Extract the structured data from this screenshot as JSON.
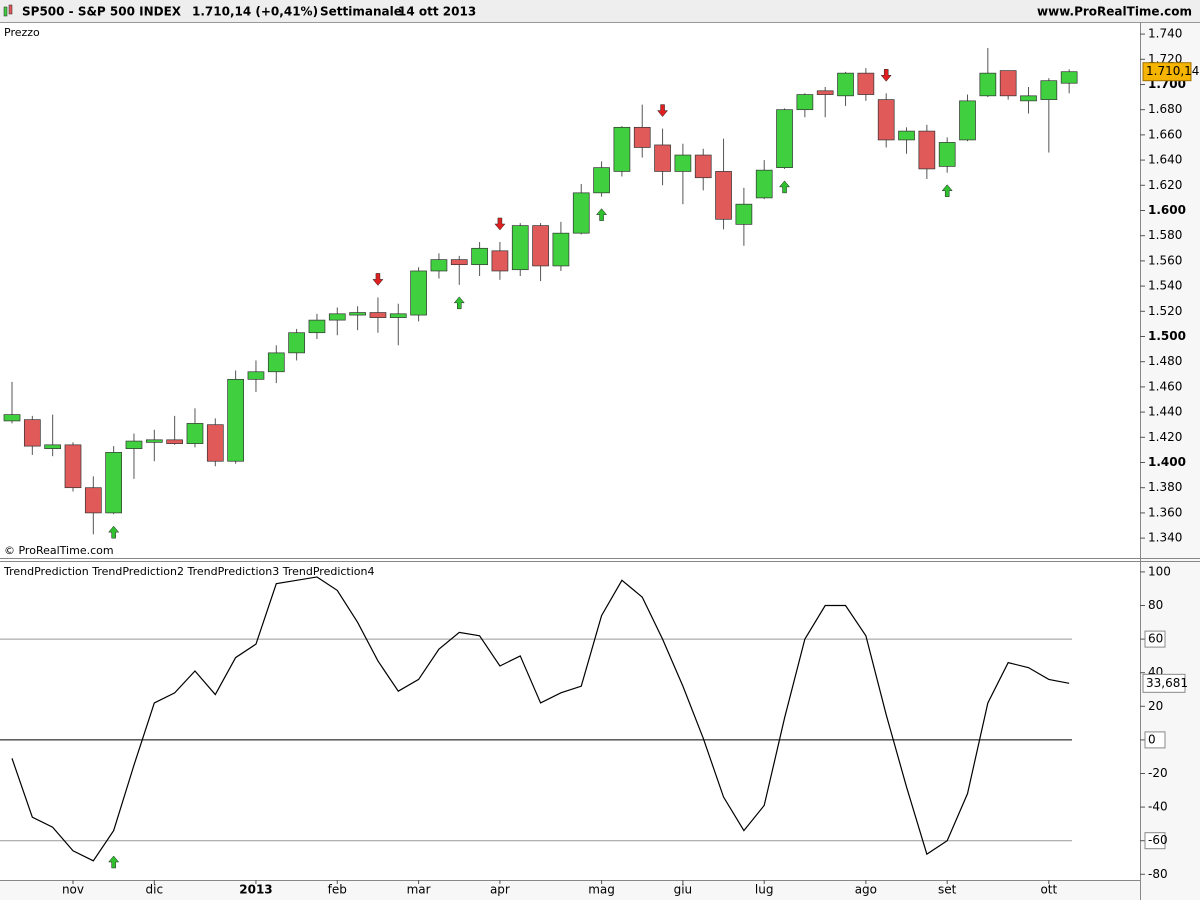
{
  "header": {
    "symbol": "SP500 - S&P 500 INDEX",
    "quote": "1.710,14 (+0,41%)",
    "period": "Settimanale",
    "date": "14 ott 2013",
    "site": "www.ProRealTime.com"
  },
  "chart_data": [
    {
      "type": "candlestick",
      "title": "Prezzo",
      "credit": "© ProRealTime.com",
      "categories": [
        null,
        null,
        null,
        "nov",
        null,
        null,
        null,
        "dic",
        null,
        null,
        null,
        null,
        "2013",
        null,
        null,
        null,
        "feb",
        null,
        null,
        null,
        "mar",
        null,
        null,
        null,
        "apr",
        null,
        null,
        null,
        null,
        "mag",
        null,
        null,
        null,
        "giu",
        null,
        null,
        null,
        "lug",
        null,
        null,
        null,
        null,
        "ago",
        null,
        null,
        null,
        "set",
        null,
        null,
        null,
        null,
        "ott",
        null
      ],
      "open": [
        1433,
        1434,
        1411,
        1414,
        1380,
        1360,
        1411,
        1416,
        1418,
        1415,
        1430,
        1401,
        1466,
        1472,
        1487,
        1503,
        1513,
        1517,
        1519,
        1515,
        1517,
        1552,
        1561,
        1557,
        1568,
        1553,
        1588,
        1556,
        1582,
        1614,
        1631,
        1666,
        1652,
        1631,
        1644,
        1631,
        1589,
        1610,
        1634,
        1680,
        1695,
        1691,
        1709,
        1688,
        1656,
        1663,
        1635,
        1656,
        1691,
        1711,
        1687,
        1688,
        1701
      ],
      "high": [
        1464,
        1437,
        1438,
        1416,
        1389,
        1413,
        1423,
        1426,
        1437,
        1443,
        1435,
        1473,
        1481,
        1493,
        1506,
        1518,
        1523,
        1524,
        1531,
        1526,
        1555,
        1566,
        1564,
        1575,
        1575,
        1590,
        1590,
        1591,
        1621,
        1639,
        1667,
        1684,
        1665,
        1653,
        1649,
        1657,
        1618,
        1640,
        1681,
        1693,
        1698,
        1710,
        1713,
        1693,
        1666,
        1668,
        1658,
        1692,
        1729,
        1711,
        1698,
        1705,
        1712
      ],
      "low": [
        1431,
        1406,
        1405,
        1377,
        1343,
        1359,
        1387,
        1401,
        1414,
        1412,
        1397,
        1399,
        1456,
        1463,
        1481,
        1498,
        1501,
        1505,
        1503,
        1493,
        1512,
        1546,
        1541,
        1548,
        1545,
        1548,
        1544,
        1552,
        1581,
        1611,
        1627,
        1642,
        1620,
        1605,
        1616,
        1585,
        1572,
        1609,
        1633,
        1674,
        1674,
        1683,
        1687,
        1650,
        1645,
        1625,
        1630,
        1655,
        1690,
        1688,
        1677,
        1646,
        1693
      ],
      "close": [
        1438,
        1413,
        1414,
        1380,
        1360,
        1408,
        1417,
        1418,
        1415,
        1431,
        1401,
        1466,
        1472,
        1487,
        1503,
        1513,
        1518,
        1519,
        1515,
        1518,
        1552,
        1561,
        1557,
        1570,
        1552,
        1588,
        1556,
        1582,
        1614,
        1634,
        1666,
        1650,
        1631,
        1644,
        1626,
        1593,
        1605,
        1632,
        1680,
        1692,
        1692,
        1709,
        1692,
        1656,
        1663,
        1633,
        1654,
        1687,
        1709,
        1691,
        1691,
        1703,
        1710.14
      ],
      "value_labels": [
        null,
        null,
        null,
        null,
        null,
        null,
        null,
        null,
        null,
        null,
        null,
        null,
        null,
        null,
        null,
        null,
        null,
        null,
        null,
        null,
        null,
        null,
        null,
        null,
        null,
        null,
        null,
        null,
        null,
        null,
        null,
        null,
        null,
        null,
        null,
        null,
        null,
        null,
        null,
        null,
        null,
        null,
        null,
        null,
        null,
        null,
        null,
        null,
        null,
        null,
        null,
        null,
        "1.710,14"
      ],
      "signals": [
        null,
        null,
        null,
        null,
        null,
        "up",
        null,
        null,
        null,
        null,
        null,
        null,
        null,
        null,
        null,
        null,
        null,
        null,
        "down",
        null,
        null,
        null,
        "up",
        null,
        "down",
        null,
        null,
        null,
        null,
        "up",
        null,
        null,
        "down",
        null,
        null,
        null,
        null,
        null,
        "up",
        null,
        null,
        null,
        null,
        "down",
        null,
        null,
        "up",
        null,
        null,
        null,
        null,
        null,
        null
      ],
      "up_color": "#3fcf3f",
      "down_color": "#e05a5a",
      "label_color": "#f5b400",
      "ylim": [
        1325,
        1748
      ],
      "yticks": [
        {
          "value": 1340,
          "label": "1.340"
        },
        {
          "value": 1360,
          "label": "1.360"
        },
        {
          "value": 1380,
          "label": "1.380"
        },
        {
          "value": 1400,
          "label": "1.400"
        },
        {
          "value": 1420,
          "label": "1.420"
        },
        {
          "value": 1440,
          "label": "1.440"
        },
        {
          "value": 1460,
          "label": "1.460"
        },
        {
          "value": 1480,
          "label": "1.480"
        },
        {
          "value": 1500,
          "label": "1.500"
        },
        {
          "value": 1520,
          "label": "1.520"
        },
        {
          "value": 1540,
          "label": "1.540"
        },
        {
          "value": 1560,
          "label": "1.560"
        },
        {
          "value": 1580,
          "label": "1.580"
        },
        {
          "value": 1600,
          "label": "1.600"
        },
        {
          "value": 1620,
          "label": "1.620"
        },
        {
          "value": 1640,
          "label": "1.640"
        },
        {
          "value": 1660,
          "label": "1.660"
        },
        {
          "value": 1680,
          "label": "1.680"
        },
        {
          "value": 1700,
          "label": "1.700"
        },
        {
          "value": 1720,
          "label": "1.720"
        },
        {
          "value": 1740,
          "label": "1.740"
        }
      ]
    },
    {
      "type": "line",
      "title": "TrendPrediction TrendPrediction2 TrendPrediction3 TrendPrediction4",
      "color": "#000000",
      "values": [
        -11,
        -46,
        -52,
        -66,
        -72,
        -54,
        -15,
        22,
        28,
        41,
        27,
        49,
        57,
        93,
        95,
        97,
        89,
        70,
        47,
        29,
        36,
        54,
        64,
        62,
        44,
        50,
        22,
        28,
        32,
        74,
        95,
        85,
        60,
        32,
        1,
        -34,
        -54,
        -39,
        13,
        60,
        80,
        80,
        62,
        15,
        -28,
        -68,
        -60,
        -32,
        22,
        46,
        43,
        36,
        33.681
      ],
      "value_labels": [
        null,
        null,
        null,
        null,
        null,
        null,
        null,
        null,
        null,
        null,
        null,
        null,
        null,
        null,
        null,
        null,
        null,
        null,
        null,
        null,
        null,
        null,
        null,
        null,
        null,
        null,
        null,
        null,
        null,
        null,
        null,
        null,
        null,
        null,
        null,
        null,
        null,
        null,
        null,
        null,
        null,
        null,
        null,
        null,
        null,
        null,
        null,
        null,
        null,
        null,
        null,
        null,
        "33,681"
      ],
      "signals": [
        null,
        null,
        null,
        null,
        null,
        "up",
        null,
        null,
        null,
        null,
        null,
        null,
        null,
        null,
        null,
        null,
        null,
        null,
        null,
        null,
        null,
        null,
        null,
        null,
        null,
        null,
        null,
        null,
        null,
        null,
        null,
        null,
        null,
        null,
        null,
        null,
        null,
        null,
        null,
        null,
        null,
        null,
        null,
        null,
        null,
        null,
        null,
        null,
        null,
        null,
        null,
        null,
        null
      ],
      "levels": [
        60,
        0,
        -60
      ],
      "ylim": [
        -83.4,
        105.9
      ],
      "yticks": [
        100,
        80,
        60,
        40,
        20,
        0,
        -20,
        -40,
        -60,
        -80
      ]
    }
  ]
}
